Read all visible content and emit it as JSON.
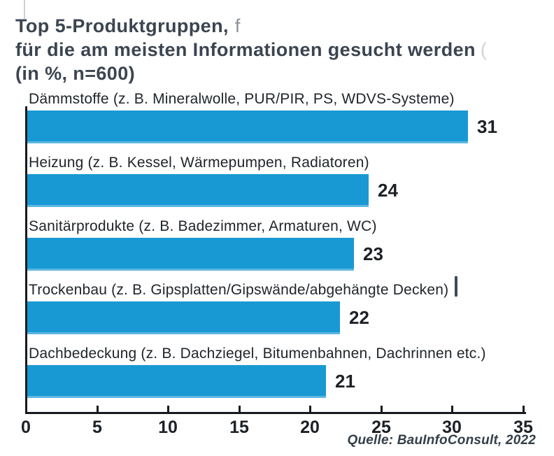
{
  "title": {
    "line1": "Top 5-Produktgruppen,",
    "line1_ghost": "f",
    "line2": "für die am meisten Informationen gesucht werden",
    "line2_ghost": "(",
    "line3": "(in %, n=600)"
  },
  "source": "Quelle: BauInfoConsult, 2022",
  "colors": {
    "bar": "#1899d4",
    "axis": "#16191d",
    "title_text": "#3b4551"
  },
  "chart_data": {
    "type": "bar",
    "orientation": "horizontal",
    "title": "Top 5-Produktgruppen, für die am meisten Informationen gesucht werden (in %, n=600)",
    "unit": "%",
    "n": 600,
    "categories": [
      "Dämmstoffe (z. B. Mineralwolle, PUR/PIR, PS, WDVS-Systeme)",
      "Heizung (z. B. Kessel, Wärmepumpen, Radiatoren)",
      "Sanitärprodukte (z. B. Badezimmer, Armaturen, WC)",
      "Trockenbau (z. B. Gipsplatten/Gipswände/abgehängte Decken)",
      "Dachbedeckung (z. B. Dachziegel, Bitumenbahnen, Dachrinnen etc.)"
    ],
    "values": [
      31,
      24,
      23,
      22,
      21
    ],
    "xlim": [
      0,
      35
    ],
    "x_ticks": [
      0,
      5,
      10,
      15,
      20,
      25,
      30,
      35
    ],
    "grid": false,
    "legend": false,
    "source": "Quelle: BauInfoConsult, 2022"
  }
}
